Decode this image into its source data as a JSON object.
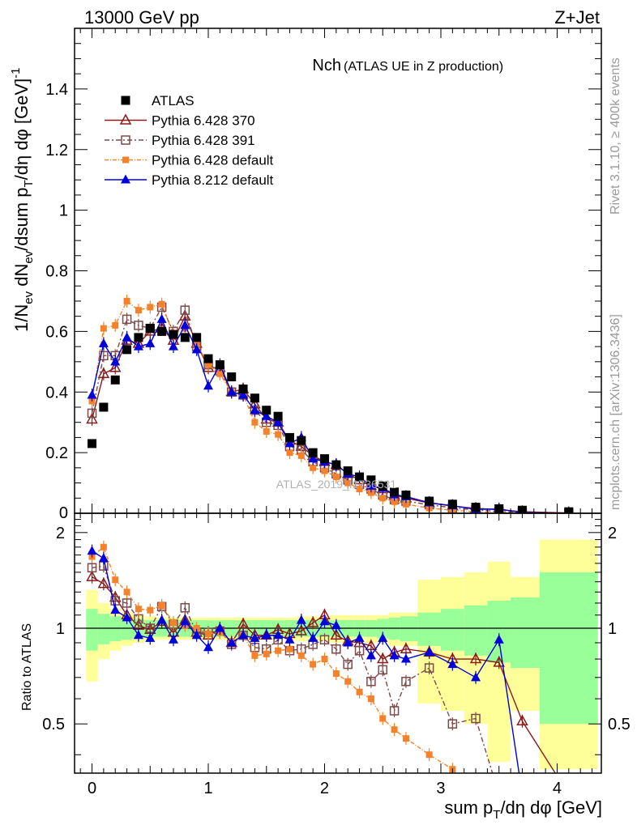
{
  "header": {
    "left": "13000 GeV pp",
    "right": "Z+Jet"
  },
  "side_labels": {
    "rivet": "Rivet 3.1.10, ≥ 400k events",
    "mcplots": "mcplots.cern.ch [arXiv:1306.3436]"
  },
  "chart_data": {
    "type": "line",
    "title_main": "Nch",
    "title_sub": "(ATLAS UE in Z production)",
    "watermark": "ATLAS_2019_I1736531",
    "ylabel_main": "1/N_ev dN_ev/dsum p_T/dη dφ [GeV]^-1",
    "ylabel_ratio": "Ratio to ATLAS",
    "xlabel": "sum p_T/dη dφ [GeV]",
    "xlim": [
      -0.15,
      4.38
    ],
    "ylim_main": [
      0,
      1.6
    ],
    "ylim_ratio": [
      0.35,
      2.3
    ],
    "x_ticks": [
      "0",
      "1",
      "2",
      "3",
      "4"
    ],
    "y_ticks_main": [
      "0.2",
      "0.4",
      "0.6",
      "0.8",
      "1",
      "1.2",
      "1.4"
    ],
    "y_ticks_ratio": [
      "0.5",
      "1",
      "2"
    ],
    "x": [
      0,
      0.1,
      0.2,
      0.3,
      0.4,
      0.5,
      0.6,
      0.7,
      0.8,
      0.9,
      1.0,
      1.1,
      1.2,
      1.3,
      1.4,
      1.5,
      1.6,
      1.7,
      1.8,
      1.9,
      2.0,
      2.1,
      2.2,
      2.3,
      2.4,
      2.5,
      2.6,
      2.7,
      2.9,
      3.1,
      3.3,
      3.5,
      3.7,
      4.1
    ],
    "series": [
      {
        "name": "ATLAS",
        "role": "data",
        "color": "#000000",
        "marker": "square-filled",
        "dash": "",
        "values": [
          0.23,
          0.35,
          0.44,
          0.54,
          0.58,
          0.61,
          0.6,
          0.59,
          0.58,
          0.58,
          0.51,
          0.49,
          0.45,
          0.41,
          0.38,
          0.34,
          0.32,
          0.25,
          0.24,
          0.2,
          0.18,
          0.16,
          0.14,
          0.12,
          0.11,
          0.09,
          0.07,
          0.06,
          0.04,
          0.03,
          0.02,
          0.015,
          0.01,
          0.005
        ],
        "ratio": [
          1,
          1,
          1,
          1,
          1,
          1,
          1,
          1,
          1,
          1,
          1,
          1,
          1,
          1,
          1,
          1,
          1,
          1,
          1,
          1,
          1,
          1,
          1,
          1,
          1,
          1,
          1,
          1,
          1,
          1,
          1,
          1,
          1,
          1
        ]
      },
      {
        "name": "Pythia 6.428 370",
        "role": "mc",
        "color": "#8b1a1a",
        "marker": "triangle-open",
        "dash": "",
        "values": [
          0.31,
          0.46,
          0.48,
          0.57,
          0.56,
          0.6,
          0.61,
          0.57,
          0.65,
          0.56,
          0.48,
          0.48,
          0.4,
          0.41,
          0.36,
          0.31,
          0.3,
          0.24,
          0.22,
          0.19,
          0.17,
          0.16,
          0.13,
          0.11,
          0.09,
          0.08,
          0.06,
          0.05,
          0.034,
          0.024,
          0.016,
          0.012,
          0.005,
          0.001
        ],
        "ratio": [
          1.45,
          1.38,
          1.25,
          1.1,
          1.02,
          0.99,
          1.05,
          0.97,
          1.06,
          0.97,
          0.95,
          0.99,
          0.9,
          1.03,
          0.95,
          0.95,
          0.99,
          0.96,
          0.98,
          1.04,
          1.1,
          0.95,
          0.91,
          0.9,
          0.88,
          0.8,
          0.84,
          0.86,
          0.84,
          0.8,
          0.8,
          0.78,
          0.51,
          0.3
        ]
      },
      {
        "name": "Pythia 6.428 391",
        "role": "mc",
        "color": "#7d4a4a",
        "marker": "square-open",
        "dash": "6,3,2,3",
        "values": [
          0.33,
          0.52,
          0.52,
          0.64,
          0.62,
          0.61,
          0.68,
          0.6,
          0.67,
          0.55,
          0.49,
          0.47,
          0.4,
          0.39,
          0.34,
          0.3,
          0.29,
          0.22,
          0.21,
          0.17,
          0.15,
          0.13,
          0.11,
          0.095,
          0.08,
          0.06,
          0.045,
          0.04,
          0.028,
          0.018,
          0.011,
          0.006,
          0.002,
          0.0
        ],
        "ratio": [
          1.55,
          1.57,
          1.22,
          1.2,
          1.07,
          1.0,
          1.17,
          1.03,
          1.16,
          0.97,
          0.97,
          0.98,
          0.89,
          0.95,
          0.87,
          0.86,
          0.92,
          0.85,
          0.86,
          0.89,
          0.92,
          0.86,
          0.77,
          0.85,
          0.68,
          0.74,
          0.55,
          0.68,
          0.75,
          0.5,
          0.52,
          0.3,
          0.2,
          0.1
        ]
      },
      {
        "name": "Pythia 6.428 default",
        "role": "mc",
        "color": "#f5822a",
        "marker": "square-filled-small",
        "dash": "5,2,1,2",
        "values": [
          0.37,
          0.61,
          0.62,
          0.7,
          0.67,
          0.68,
          0.69,
          0.59,
          0.61,
          0.56,
          0.49,
          0.46,
          0.4,
          0.39,
          0.3,
          0.27,
          0.26,
          0.2,
          0.19,
          0.15,
          0.14,
          0.12,
          0.1,
          0.08,
          0.068,
          0.05,
          0.038,
          0.03,
          0.017,
          0.01,
          0.005,
          0.002,
          0.001,
          0.0
        ],
        "ratio": [
          1.68,
          1.8,
          1.42,
          1.3,
          1.15,
          1.14,
          1.18,
          1.04,
          1.02,
          1.0,
          0.96,
          0.97,
          0.91,
          0.95,
          0.82,
          0.83,
          0.85,
          0.86,
          0.82,
          0.77,
          0.8,
          0.72,
          0.68,
          0.63,
          0.6,
          0.52,
          0.48,
          0.45,
          0.4,
          0.36,
          0.3,
          0.25,
          0.2,
          0.1
        ]
      },
      {
        "name": "Pythia 8.212 default",
        "role": "mc",
        "color": "#0000dd",
        "marker": "triangle-filled",
        "dash": "",
        "values": [
          0.39,
          0.56,
          0.5,
          0.58,
          0.55,
          0.56,
          0.64,
          0.55,
          0.62,
          0.54,
          0.42,
          0.49,
          0.4,
          0.39,
          0.34,
          0.32,
          0.3,
          0.23,
          0.25,
          0.18,
          0.17,
          0.16,
          0.13,
          0.12,
          0.09,
          0.083,
          0.062,
          0.055,
          0.035,
          0.025,
          0.013,
          0.014,
          0.002,
          0.0
        ],
        "ratio": [
          1.75,
          1.66,
          1.14,
          1.08,
          0.95,
          0.93,
          1.06,
          0.92,
          1.05,
          0.95,
          0.87,
          1.0,
          0.9,
          0.95,
          0.93,
          0.95,
          0.95,
          0.92,
          1.06,
          0.93,
          1.05,
          1.02,
          0.9,
          0.93,
          0.82,
          0.93,
          0.82,
          0.8,
          0.84,
          0.77,
          0.7,
          0.92,
          0.3,
          0.1
        ]
      }
    ],
    "uncertainty_bands": {
      "edges": [
        -0.05,
        0.05,
        0.15,
        0.25,
        0.35,
        0.45,
        0.55,
        0.65,
        0.75,
        0.85,
        0.95,
        1.05,
        1.15,
        1.25,
        1.35,
        1.45,
        1.55,
        1.65,
        1.75,
        1.85,
        1.95,
        2.05,
        2.15,
        2.25,
        2.35,
        2.45,
        2.55,
        2.65,
        2.8,
        3.0,
        3.2,
        3.4,
        3.6,
        3.85,
        4.35
      ],
      "stat_half": [
        0.15,
        0.11,
        0.09,
        0.08,
        0.07,
        0.06,
        0.06,
        0.06,
        0.06,
        0.06,
        0.06,
        0.06,
        0.06,
        0.06,
        0.06,
        0.06,
        0.06,
        0.06,
        0.06,
        0.06,
        0.06,
        0.06,
        0.06,
        0.06,
        0.06,
        0.07,
        0.08,
        0.09,
        0.12,
        0.15,
        0.18,
        0.22,
        0.25,
        0.5
      ],
      "total_half": [
        0.32,
        0.2,
        0.15,
        0.12,
        0.1,
        0.09,
        0.08,
        0.08,
        0.08,
        0.08,
        0.08,
        0.08,
        0.08,
        0.08,
        0.08,
        0.08,
        0.08,
        0.08,
        0.09,
        0.09,
        0.09,
        0.1,
        0.1,
        0.1,
        0.1,
        0.1,
        0.12,
        0.12,
        0.42,
        0.45,
        0.5,
        0.62,
        0.45,
        0.9
      ]
    }
  }
}
